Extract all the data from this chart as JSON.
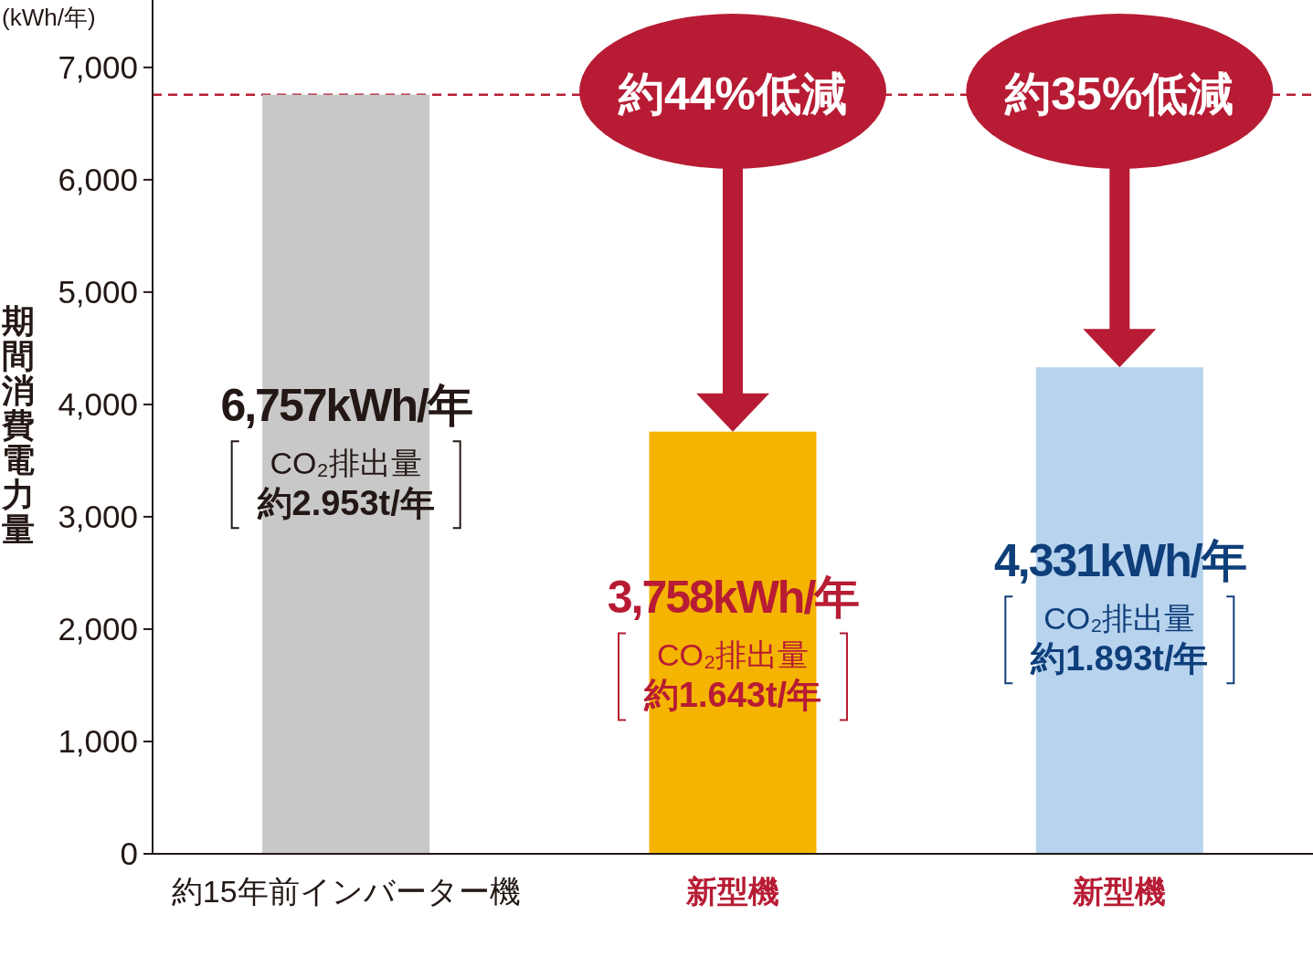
{
  "chart_data": {
    "type": "bar",
    "ylabel": "期間消費電力量",
    "categories": [
      "約15年前インバーター機",
      "新型機",
      "新型機"
    ],
    "values": [
      6757,
      3758,
      4331
    ],
    "colors": [
      "#c8c8c8",
      "#f5b400",
      "#b7d3ee"
    ],
    "value_labels": [
      "6,757kWh/年",
      "3,758kWh/年",
      "4,331kWh/年"
    ],
    "ylim": [
      0,
      7600
    ],
    "yticks": [
      0,
      {
        "value": 1000,
        "label": "1,000"
      },
      {
        "value": 2000,
        "label": "2,000"
      },
      {
        "value": 3000,
        "label": "3,000"
      },
      {
        "value": 4000,
        "label": "4,000"
      },
      {
        "value": 5000,
        "label": "5,000"
      },
      {
        "value": 6000,
        "label": "6,000"
      },
      {
        "value": 7000,
        "label": "7,000"
      }
    ],
    "ref_lines": [
      {
        "axis": "y",
        "value": 6757,
        "label": null,
        "color": "#b71c34",
        "line_style": "dashed"
      }
    ],
    "annotations": [
      "(kWh/年)",
      "約44%低減",
      "約35%低減",
      "CO₂排出量",
      "約2.953t/年",
      "CO₂排出量",
      "約1.643t/年",
      "CO₂排出量",
      "約1.893t/年"
    ]
  }
}
